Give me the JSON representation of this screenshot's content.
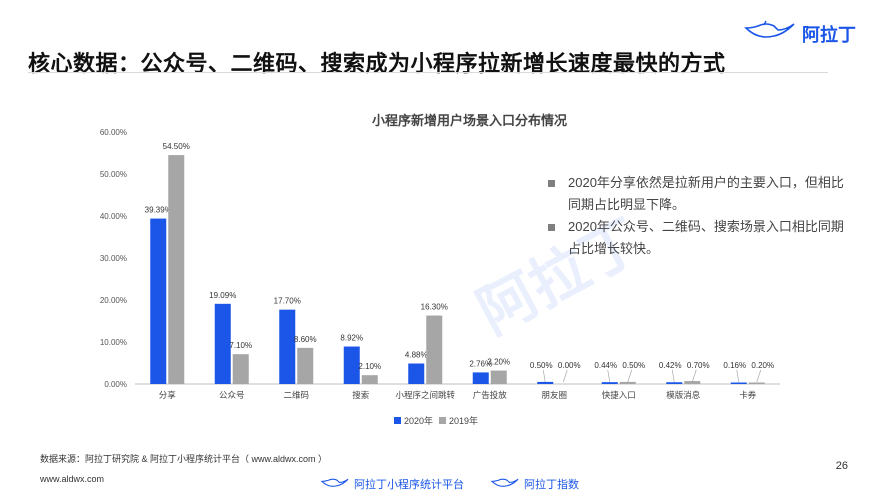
{
  "header": {
    "title": "核心数据：公众号、二维码、搜索成为小程序拉新增长速度最快的方式",
    "brand": "阿拉丁"
  },
  "watermark": "阿拉丁",
  "chart_data": {
    "type": "bar",
    "title": "小程序新增用户场景入口分布情况",
    "categories": [
      "分享",
      "公众号",
      "二维码",
      "搜索",
      "小程序之间跳转",
      "广告投放",
      "朋友圈",
      "快捷入口",
      "模版消息",
      "卡券"
    ],
    "series": [
      {
        "name": "2020年",
        "values": [
          39.39,
          19.09,
          17.7,
          8.92,
          4.88,
          2.76,
          0.5,
          0.44,
          0.42,
          0.16
        ],
        "labels": [
          "39.39%",
          "19.09%",
          "17.70%",
          "8.92%",
          "4.88%",
          "2.76%",
          "0.50%",
          "0.44%",
          "0.42%",
          "0.16%"
        ],
        "color": "#1b56e8"
      },
      {
        "name": "2019年",
        "values": [
          54.5,
          7.1,
          8.6,
          2.1,
          16.3,
          3.2,
          0.0,
          0.5,
          0.7,
          0.2
        ],
        "labels": [
          "54.50%",
          "7.10%",
          "8.60%",
          "2.10%",
          "16.30%",
          "3.20%",
          "0.00%",
          "0.50%",
          "0.70%",
          "0.20%"
        ],
        "color": "#a6a6a6"
      }
    ],
    "yticks": [
      "0.00%",
      "10.00%",
      "20.00%",
      "30.00%",
      "40.00%",
      "50.00%",
      "60.00%"
    ],
    "ylim": [
      0,
      60
    ],
    "legend_position": "bottom",
    "grid": false
  },
  "notes": [
    "2020年分享依然是拉新用户的主要入口，但相比同期占比明显下降。",
    "2020年公众号、二维码、搜索场景入口相比同期占比增长较快。"
  ],
  "footer": {
    "source": "数据来源：阿拉丁研究院 & 阿拉丁小程序统计平台（ www.aldwx.com ）",
    "url": "www.aldwx.com",
    "page": "26",
    "logo1": "阿拉丁小程序统计平台",
    "logo2": "阿拉丁指数"
  }
}
